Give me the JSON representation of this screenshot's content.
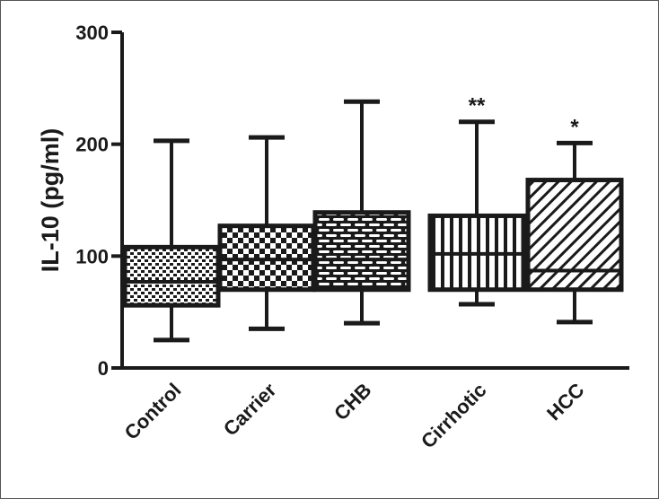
{
  "chart_data": {
    "type": "box",
    "ylabel": "IL-10 (pg/ml)",
    "xlabel": "",
    "ylim": [
      0,
      300
    ],
    "yticks": [
      0,
      100,
      200,
      300
    ],
    "grid": false,
    "categories": [
      "Control",
      "Carrier",
      "CHB",
      "Cirrhotic",
      "HCC"
    ],
    "boxes": [
      {
        "category": "Control",
        "min": 25,
        "q1": 56,
        "median": 77,
        "q3": 108,
        "max": 203,
        "annotation": ""
      },
      {
        "category": "Carrier",
        "min": 35,
        "q1": 70,
        "median": 97,
        "q3": 127,
        "max": 206,
        "annotation": ""
      },
      {
        "category": "CHB",
        "min": 40,
        "q1": 70,
        "median": 97,
        "q3": 139,
        "max": 238,
        "annotation": ""
      },
      {
        "category": "Cirrhotic",
        "min": 57,
        "q1": 70,
        "median": 102,
        "q3": 136,
        "max": 220,
        "annotation": "**"
      },
      {
        "category": "HCC",
        "min": 41,
        "q1": 70,
        "median": 87,
        "q3": 168,
        "max": 201,
        "annotation": "*"
      }
    ],
    "box_patterns": [
      "dots",
      "checker",
      "bricks",
      "vertical-lines",
      "diagonal-lines"
    ],
    "colors": {
      "ink": "#1a1a1a",
      "background": "#ffffff"
    }
  }
}
